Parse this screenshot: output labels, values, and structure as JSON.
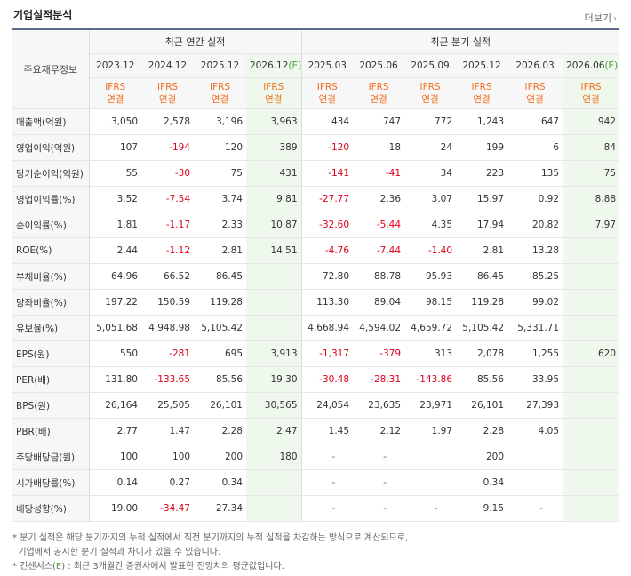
{
  "section_title": "기업실적분석",
  "more_label": "더보기",
  "more_icon": "chevron-right",
  "corner_label": "주요재무정보",
  "group_annual": "최근 연간 실적",
  "group_quarter": "최근 분기 실적",
  "periods": [
    "2023.12",
    "2024.12",
    "2025.12",
    "2026.12",
    "2025.03",
    "2025.06",
    "2025.09",
    "2025.12",
    "2026.03",
    "2026.06"
  ],
  "estimate_mark": "(E)",
  "ifrs_top": "IFRS",
  "ifrs_bottom": "연결",
  "rows": [
    {
      "label": "매출액(억원)",
      "values": [
        "3,050",
        "2,578",
        "3,196",
        "3,963",
        "434",
        "747",
        "772",
        "1,243",
        "647",
        "942"
      ]
    },
    {
      "label": "영업이익(억원)",
      "values": [
        "107",
        "-194",
        "120",
        "389",
        "-120",
        "18",
        "24",
        "199",
        "6",
        "84"
      ]
    },
    {
      "label": "당기순이익(억원)",
      "values": [
        "55",
        "-30",
        "75",
        "431",
        "-141",
        "-41",
        "34",
        "223",
        "135",
        "75"
      ]
    },
    {
      "label": "영업이익률(%)",
      "values": [
        "3.52",
        "-7.54",
        "3.74",
        "9.81",
        "-27.77",
        "2.36",
        "3.07",
        "15.97",
        "0.92",
        "8.88"
      ]
    },
    {
      "label": "순이익률(%)",
      "values": [
        "1.81",
        "-1.17",
        "2.33",
        "10.87",
        "-32.60",
        "-5.44",
        "4.35",
        "17.94",
        "20.82",
        "7.97"
      ]
    },
    {
      "label": "ROE(%)",
      "values": [
        "2.44",
        "-1.12",
        "2.81",
        "14.51",
        "-4.76",
        "-7.44",
        "-1.40",
        "2.81",
        "13.28",
        ""
      ]
    },
    {
      "label": "부채비율(%)",
      "values": [
        "64.96",
        "66.52",
        "86.45",
        "",
        "72.80",
        "88.78",
        "95.93",
        "86.45",
        "85.25",
        ""
      ]
    },
    {
      "label": "당좌비율(%)",
      "values": [
        "197.22",
        "150.59",
        "119.28",
        "",
        "113.30",
        "89.04",
        "98.15",
        "119.28",
        "99.02",
        ""
      ]
    },
    {
      "label": "유보율(%)",
      "values": [
        "5,051.68",
        "4,948.98",
        "5,105.42",
        "",
        "4,668.94",
        "4,594.02",
        "4,659.72",
        "5,105.42",
        "5,331.71",
        ""
      ]
    },
    {
      "label": "EPS(원)",
      "values": [
        "550",
        "-281",
        "695",
        "3,913",
        "-1,317",
        "-379",
        "313",
        "2,078",
        "1,255",
        "620"
      ]
    },
    {
      "label": "PER(배)",
      "values": [
        "131.80",
        "-133.65",
        "85.56",
        "19.30",
        "-30.48",
        "-28.31",
        "-143.86",
        "85.56",
        "33.95",
        ""
      ]
    },
    {
      "label": "BPS(원)",
      "values": [
        "26,164",
        "25,505",
        "26,101",
        "30,565",
        "24,054",
        "23,635",
        "23,971",
        "26,101",
        "27,393",
        ""
      ]
    },
    {
      "label": "PBR(배)",
      "values": [
        "2.77",
        "1.47",
        "2.28",
        "2.47",
        "1.45",
        "2.12",
        "1.97",
        "2.28",
        "4.05",
        ""
      ]
    },
    {
      "label": "주당배당금(원)",
      "values": [
        "100",
        "100",
        "200",
        "180",
        "-",
        "-",
        "",
        "200",
        "",
        ""
      ]
    },
    {
      "label": "시가배당률(%)",
      "values": [
        "0.14",
        "0.27",
        "0.34",
        "",
        "-",
        "-",
        "",
        "0.34",
        "",
        ""
      ]
    },
    {
      "label": "배당성향(%)",
      "values": [
        "19.00",
        "-34.47",
        "27.34",
        "",
        "-",
        "-",
        "-",
        "9.15",
        "-",
        ""
      ]
    }
  ],
  "note_1": "* 분기 실적은 해당 분기까지의 누적 실적에서 직전 분기까지의 누적 실적을 차감하는 방식으로 계산되므로,",
  "note_2": "  기업에서 공시한 분기 실적과 차이가 있을 수 있습니다.",
  "note_3_prefix": "* 컨센서스(",
  "note_3_e": "E",
  "note_3_suffix": ") : 최근 3개월간 증권사에서 발표한 전망치의 평균값입니다."
}
